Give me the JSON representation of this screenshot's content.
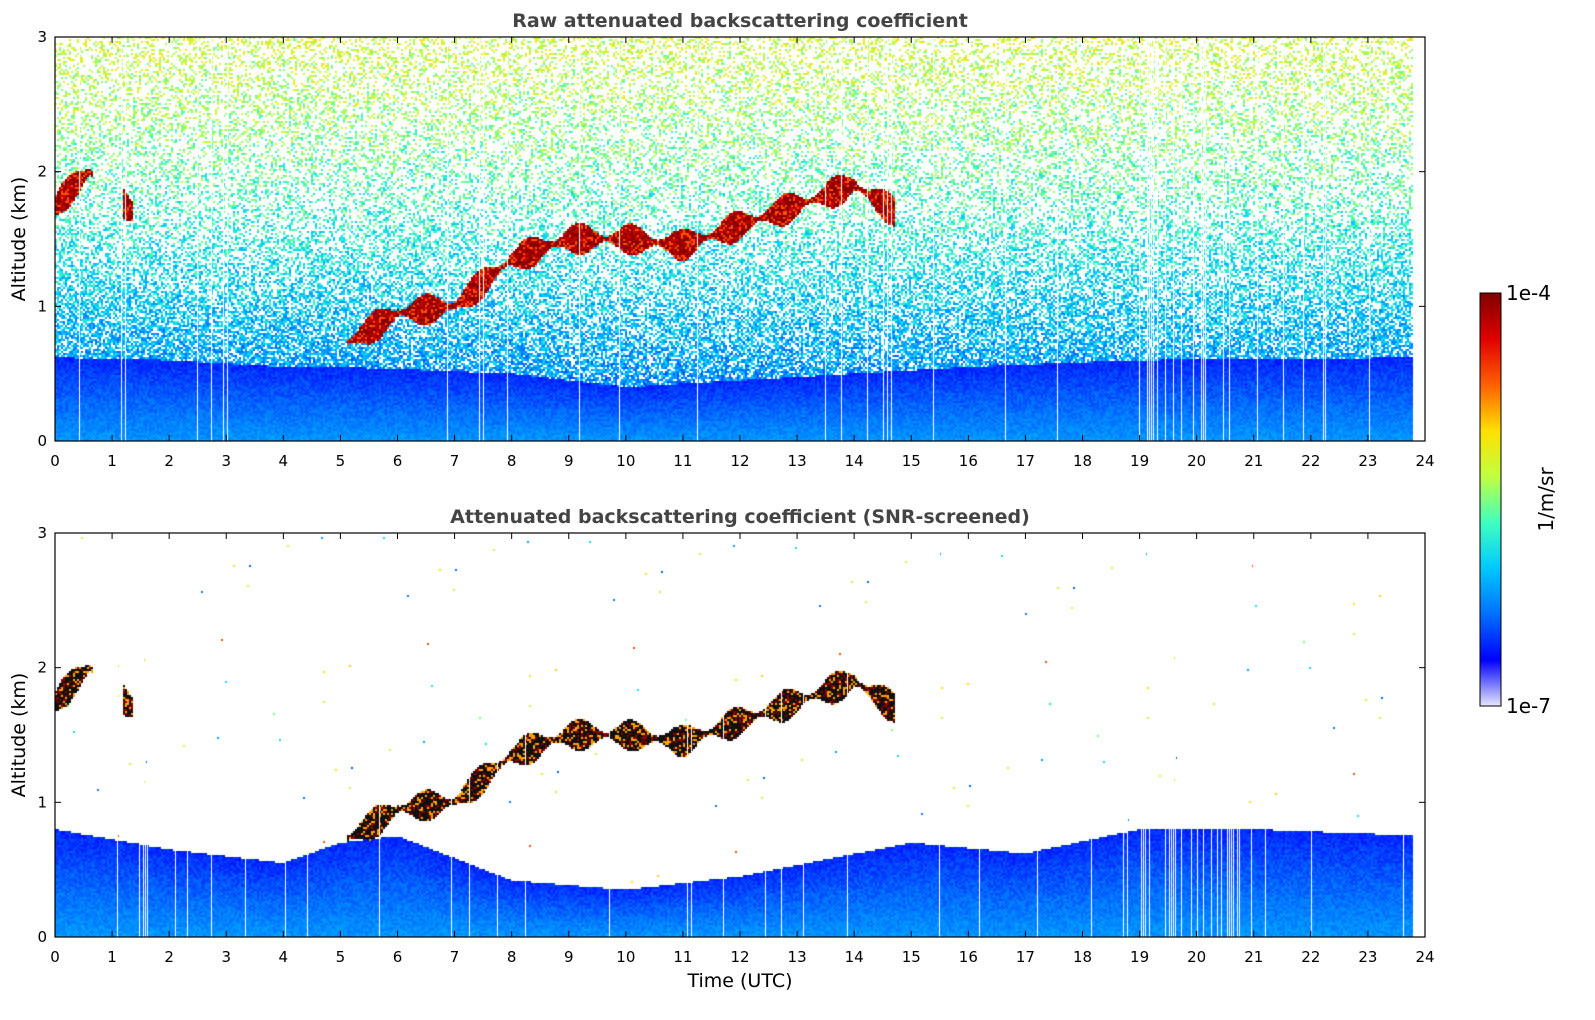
{
  "chart_data": [
    {
      "type": "heatmap",
      "title": "Raw attenuated backscattering coefficient",
      "xlabel": "",
      "ylabel": "Altitude (km)",
      "xlim": [
        0,
        24
      ],
      "ylim": [
        0,
        3
      ],
      "xticks": [
        "0",
        "1",
        "2",
        "3",
        "4",
        "5",
        "6",
        "7",
        "8",
        "9",
        "10",
        "11",
        "12",
        "13",
        "14",
        "15",
        "16",
        "17",
        "18",
        "19",
        "20",
        "21",
        "22",
        "23",
        "24"
      ],
      "yticks": [
        "0",
        "1",
        "2",
        "3"
      ],
      "grid": false,
      "noise": "full",
      "aerosol_layer_top_km": [
        [
          0,
          0.62
        ],
        [
          2,
          0.6
        ],
        [
          4,
          0.55
        ],
        [
          5,
          0.55
        ],
        [
          8,
          0.5
        ],
        [
          10,
          0.4
        ],
        [
          12,
          0.45
        ],
        [
          16,
          0.55
        ],
        [
          19,
          0.6
        ],
        [
          24,
          0.62
        ]
      ],
      "cloud_layer_km": [
        [
          0,
          1.75
        ],
        [
          0.6,
          2.0
        ],
        [
          1.3,
          1.72
        ],
        [
          5,
          0.7
        ],
        [
          6,
          0.95
        ],
        [
          7,
          1.0
        ],
        [
          8,
          1.35
        ],
        [
          9,
          1.5
        ],
        [
          10,
          1.5
        ],
        [
          11,
          1.45
        ],
        [
          12,
          1.6
        ],
        [
          13,
          1.75
        ],
        [
          14,
          1.9
        ],
        [
          14.7,
          1.7
        ]
      ]
    },
    {
      "type": "heatmap",
      "title": "Attenuated backscattering coefficient (SNR-screened)",
      "xlabel": "Time (UTC)",
      "ylabel": "Altitude (km)",
      "xlim": [
        0,
        24
      ],
      "ylim": [
        0,
        3
      ],
      "xticks": [
        "0",
        "1",
        "2",
        "3",
        "4",
        "5",
        "6",
        "7",
        "8",
        "9",
        "10",
        "11",
        "12",
        "13",
        "14",
        "15",
        "16",
        "17",
        "18",
        "19",
        "20",
        "21",
        "22",
        "23",
        "24"
      ],
      "yticks": [
        "0",
        "1",
        "2",
        "3"
      ],
      "grid": false,
      "noise": "screened",
      "aerosol_layer_top_km": [
        [
          0,
          0.8
        ],
        [
          2,
          0.65
        ],
        [
          4,
          0.55
        ],
        [
          5,
          0.7
        ],
        [
          6,
          0.75
        ],
        [
          8,
          0.42
        ],
        [
          10,
          0.35
        ],
        [
          12,
          0.45
        ],
        [
          15,
          0.7
        ],
        [
          17,
          0.62
        ],
        [
          19,
          0.8
        ],
        [
          21,
          0.8
        ],
        [
          24,
          0.75
        ]
      ],
      "cloud_layer_km": [
        [
          0,
          1.75
        ],
        [
          0.6,
          2.0
        ],
        [
          1.3,
          1.72
        ],
        [
          5,
          0.7
        ],
        [
          6,
          0.95
        ],
        [
          7,
          1.0
        ],
        [
          8,
          1.35
        ],
        [
          9,
          1.5
        ],
        [
          10,
          1.5
        ],
        [
          11,
          1.45
        ],
        [
          12,
          1.6
        ],
        [
          13,
          1.75
        ],
        [
          14,
          1.9
        ],
        [
          14.7,
          1.7
        ]
      ]
    }
  ],
  "colorbar": {
    "label": "1/m/sr",
    "max_label": "1e-4",
    "min_label": "1e-7",
    "scale": "log",
    "range": [
      1e-07,
      0.0001
    ],
    "colors": [
      "#e6e6ff",
      "#0000ff",
      "#0070ff",
      "#00c8ff",
      "#40ffc0",
      "#c0ff40",
      "#ffe000",
      "#ff6000",
      "#e00000",
      "#800000"
    ]
  }
}
